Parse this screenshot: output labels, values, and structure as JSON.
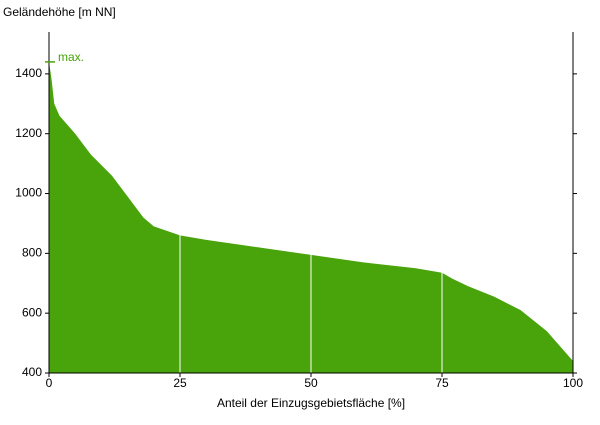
{
  "chart_data": {
    "type": "area",
    "title": "Geländehöhe [m NN]",
    "x_label": "Anteil der Einzugsgebietsfläche [%]",
    "x": [
      0,
      0.5,
      1,
      2,
      5,
      8,
      12,
      15,
      18,
      20,
      25,
      30,
      40,
      50,
      60,
      70,
      75,
      77,
      80,
      85,
      90,
      95,
      98,
      100
    ],
    "values": [
      1440,
      1380,
      1300,
      1260,
      1200,
      1130,
      1060,
      990,
      920,
      890,
      860,
      845,
      820,
      795,
      770,
      750,
      735,
      715,
      690,
      655,
      610,
      540,
      480,
      440
    ],
    "color": "#48a40a",
    "xlim": [
      0,
      100
    ],
    "xticks": [
      0,
      25,
      50,
      75,
      100
    ],
    "ylim": [
      400,
      1540
    ],
    "yticks": [
      400,
      600,
      800,
      1000,
      1200,
      1400
    ],
    "grid": true,
    "annotation": {
      "label": "max.",
      "value": 1440
    }
  }
}
